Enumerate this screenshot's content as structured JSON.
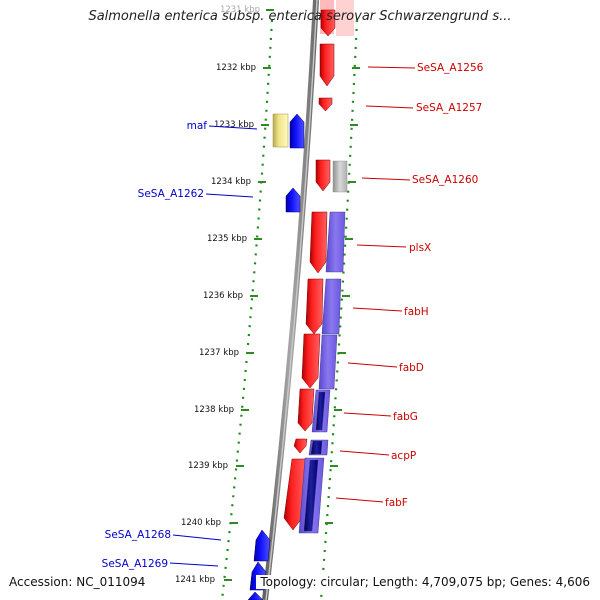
{
  "title": "Salmonella enterica subsp. enterica serovar Schwarzengrund s...",
  "ruler": {
    "ticks": [
      "1231 kbp",
      "1232 kbp",
      "1233 kbp",
      "1234 kbp",
      "1235 kbp",
      "1236 kbp",
      "1237 kbp",
      "1238 kbp",
      "1239 kbp",
      "1240 kbp",
      "1241 kbp"
    ]
  },
  "genes_forward": [
    {
      "label": "SeSA_A1256"
    },
    {
      "label": "SeSA_A1257"
    },
    {
      "label": "SeSA_A1260"
    },
    {
      "label": "plsX"
    },
    {
      "label": "fabH"
    },
    {
      "label": "fabD"
    },
    {
      "label": "fabG"
    },
    {
      "label": "acpP"
    },
    {
      "label": "fabF"
    }
  ],
  "genes_reverse": [
    {
      "label": "maf"
    },
    {
      "label": "SeSA_A1262"
    },
    {
      "label": "SeSA_A1268"
    },
    {
      "label": "SeSA_A1269"
    }
  ],
  "colors": {
    "forward_gene": "#ff0000",
    "reverse_gene": "#0000ff",
    "forward_label": "#cc0000",
    "reverse_label": "#0000cc",
    "backbone": "#808080",
    "tick": "#2e8b22",
    "protein_blast": "#7b68ee",
    "protein_blast_dark": "#000080",
    "yellow_feature": "#f0e68c",
    "grey_feature": "#c0c0c0"
  },
  "footer": {
    "accession": "Accession: NC_011094",
    "topology": "Topology: circular; Length: 4,709,075 bp; Genes: 4,606"
  }
}
